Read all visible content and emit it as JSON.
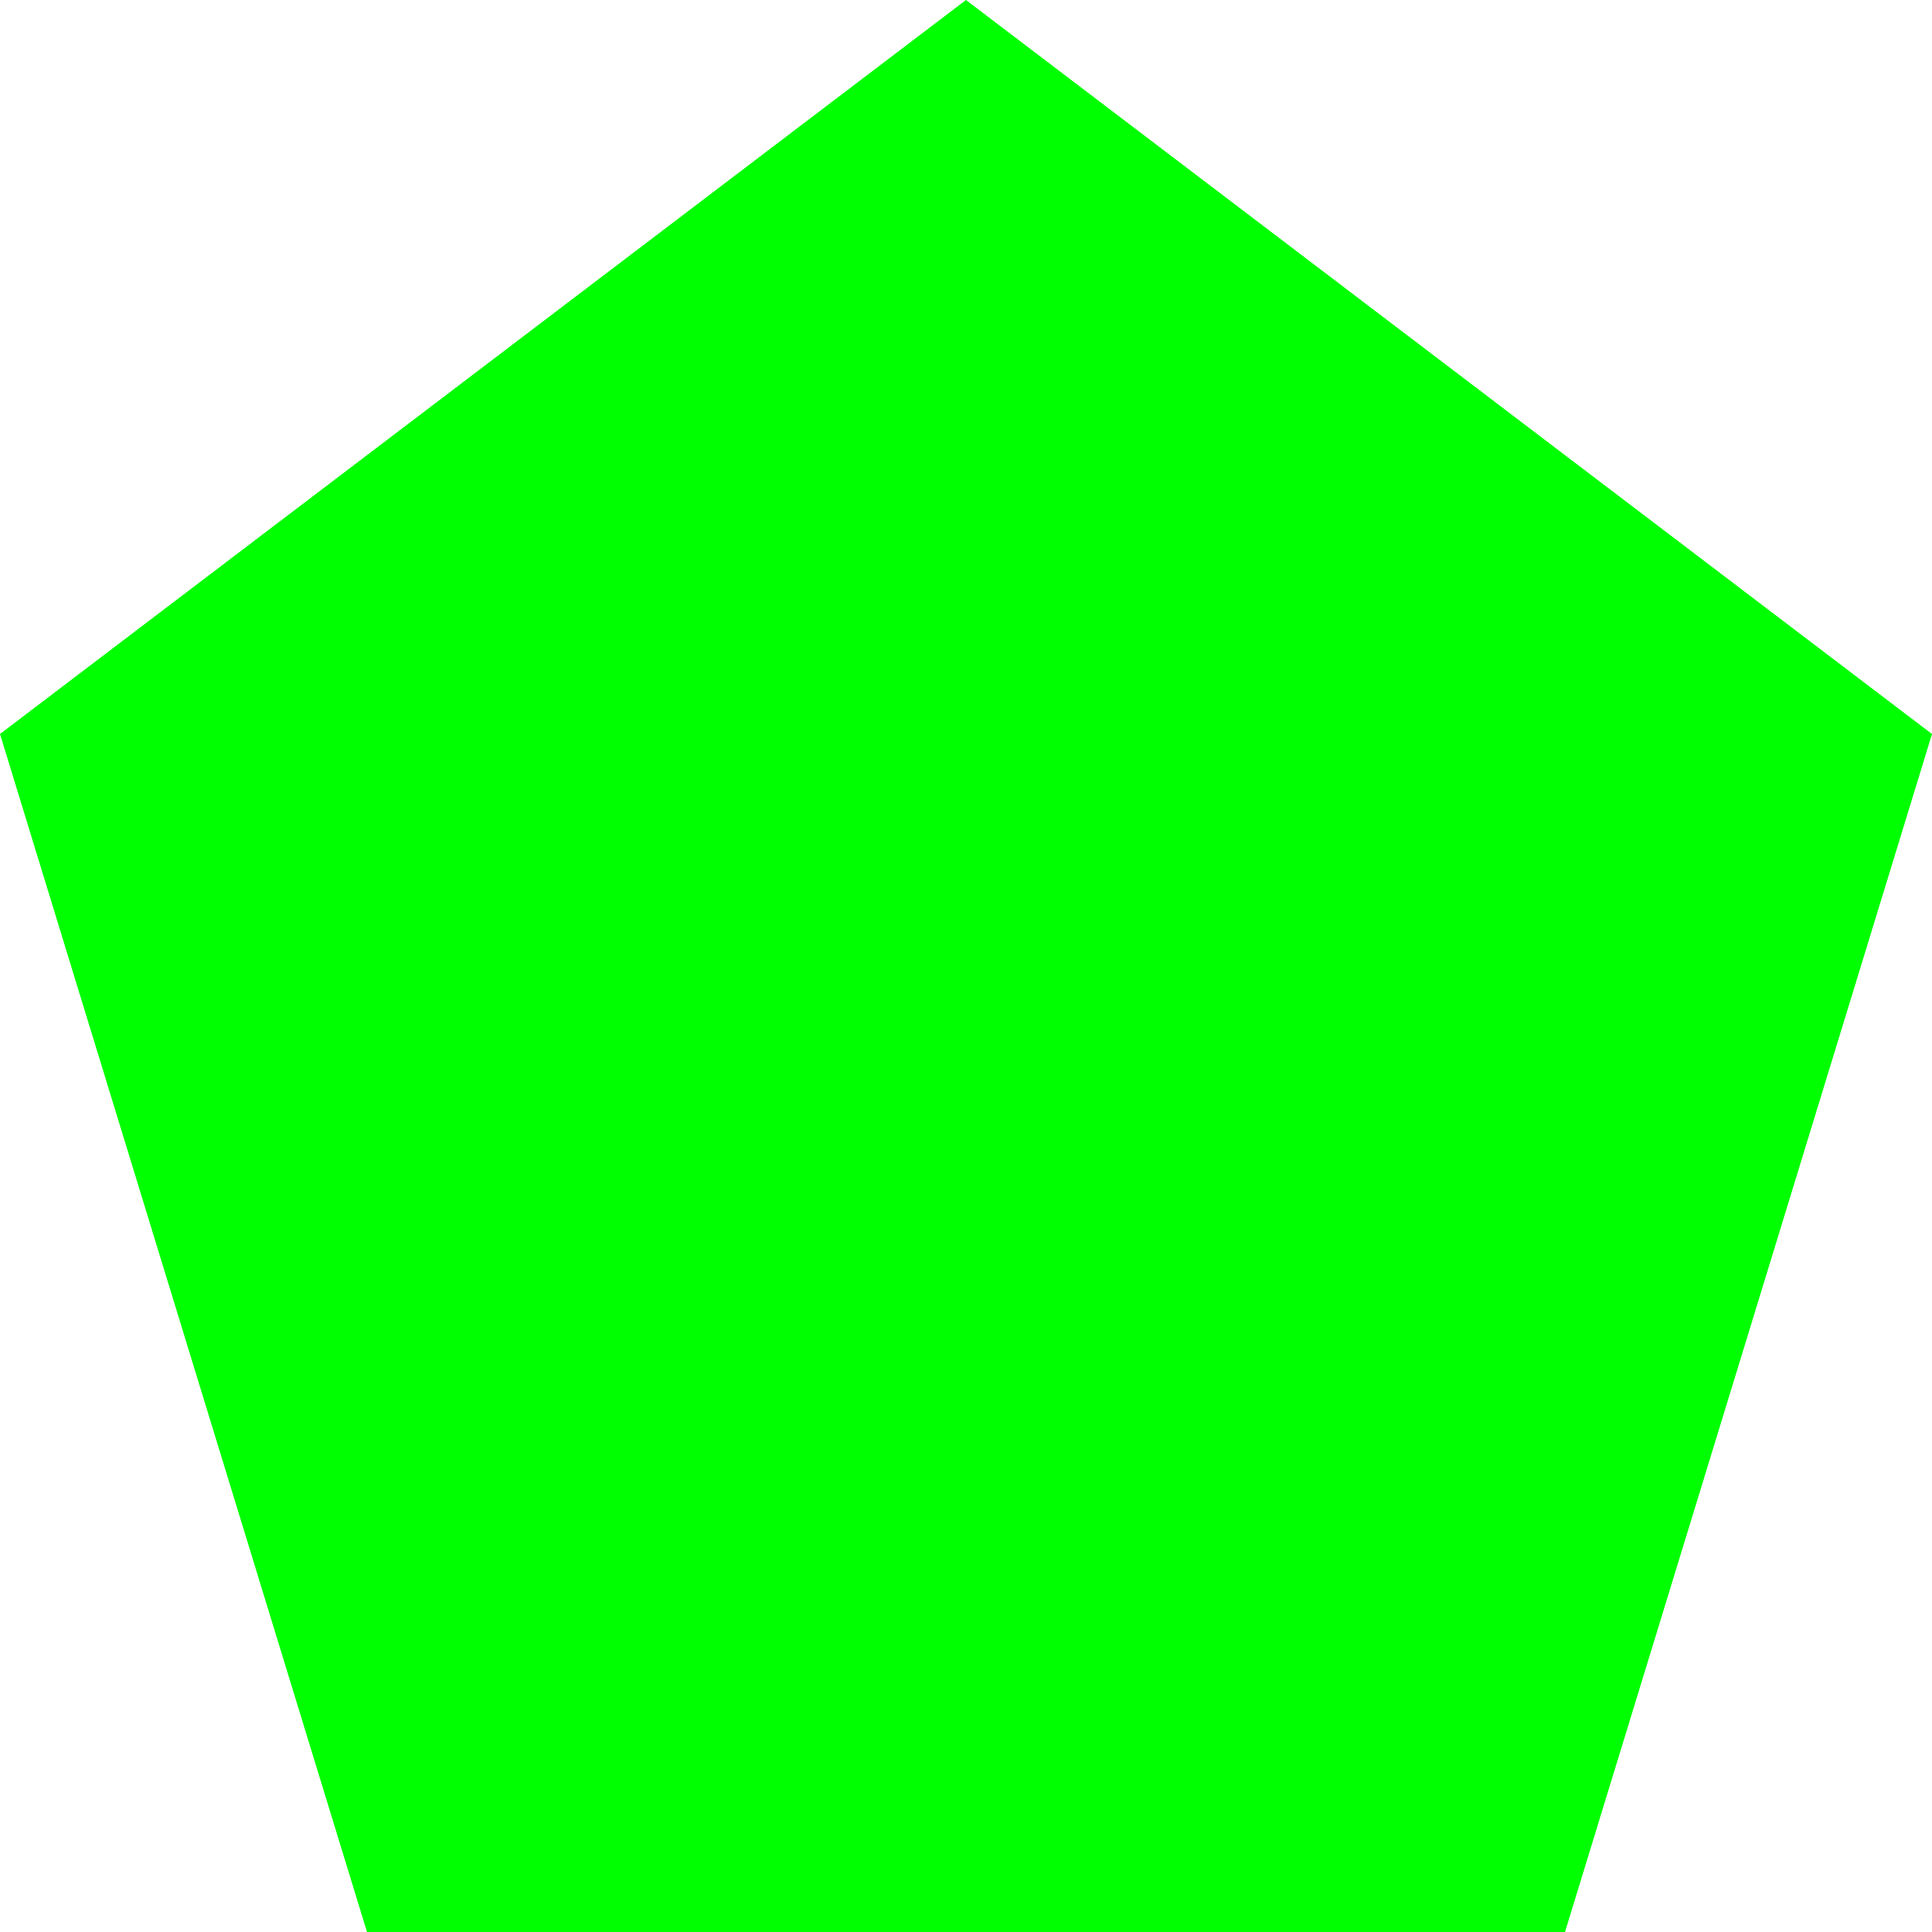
{
  "shape": {
    "name": "pentagon",
    "fill_color": "#00ff00"
  },
  "background_color": "#ffffff"
}
